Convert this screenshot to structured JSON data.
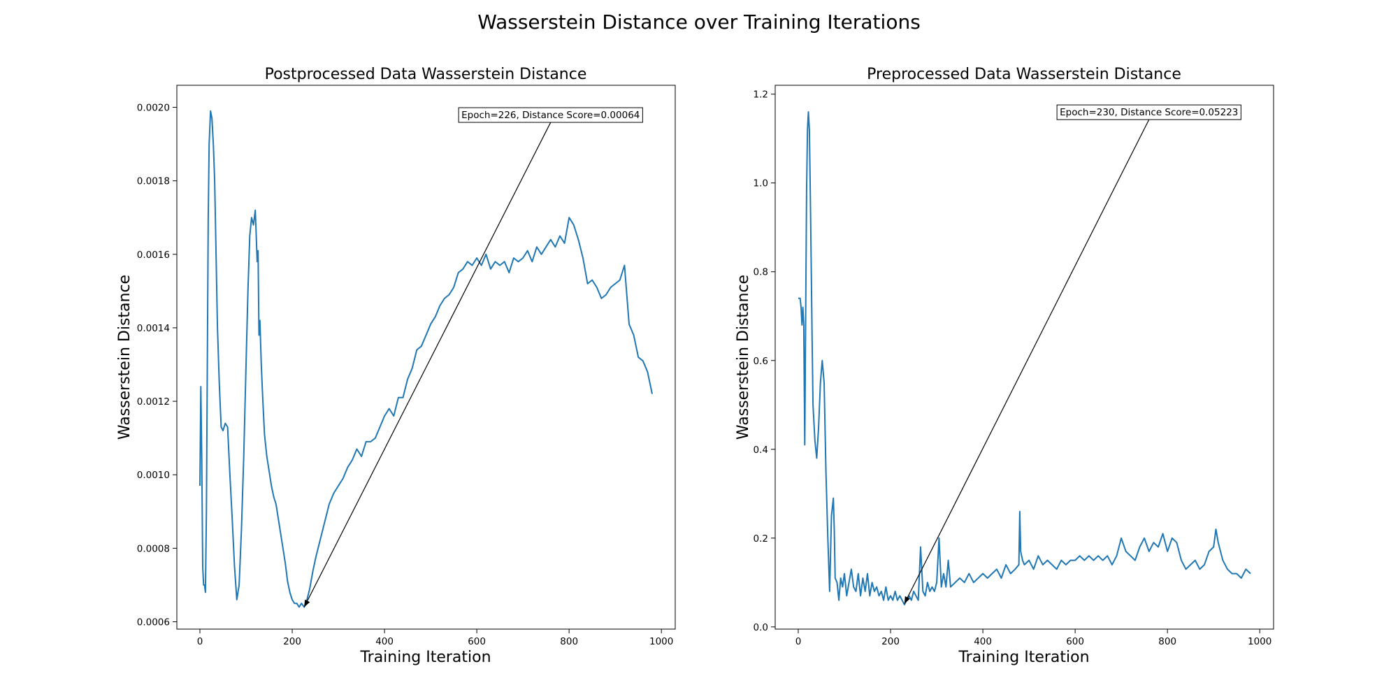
{
  "figure": {
    "suptitle": "Wasserstein Distance over Training Iterations"
  },
  "colors": {
    "line": "#1f77b4",
    "axis": "#000000",
    "background": "#ffffff"
  },
  "chart_data": [
    {
      "type": "line",
      "title": "Postprocessed Data Wasserstein Distance",
      "xlabel": "Training Iteration",
      "ylabel": "Wasserstein Distance",
      "xlim": [
        -50,
        1030
      ],
      "ylim": [
        0.00058,
        0.00206
      ],
      "xticks": [
        0,
        200,
        400,
        600,
        800,
        1000
      ],
      "yticks": [
        0.0006,
        0.0008,
        0.001,
        0.0012,
        0.0014,
        0.0016,
        0.0018,
        0.002
      ],
      "tick_decimals": 4,
      "grid": false,
      "series": [
        {
          "x": [
            0,
            2,
            4,
            6,
            8,
            10,
            12,
            14,
            16,
            18,
            20,
            23,
            26,
            29,
            32,
            35,
            38,
            42,
            46,
            50,
            55,
            60,
            65,
            70,
            75,
            80,
            85,
            90,
            95,
            100,
            104,
            108,
            112,
            116,
            120,
            122,
            124,
            126,
            128,
            130,
            133,
            136,
            140,
            145,
            150,
            155,
            160,
            165,
            170,
            175,
            180,
            185,
            190,
            195,
            200,
            205,
            210,
            215,
            220,
            226,
            232,
            238,
            245,
            252,
            260,
            270,
            280,
            290,
            300,
            310,
            320,
            330,
            340,
            350,
            360,
            370,
            380,
            390,
            400,
            410,
            420,
            430,
            440,
            450,
            460,
            470,
            480,
            490,
            500,
            510,
            520,
            530,
            540,
            550,
            560,
            570,
            580,
            590,
            600,
            610,
            620,
            630,
            640,
            650,
            660,
            670,
            680,
            690,
            700,
            710,
            720,
            730,
            740,
            750,
            760,
            770,
            780,
            790,
            800,
            810,
            820,
            830,
            840,
            850,
            860,
            870,
            880,
            890,
            900,
            910,
            920,
            930,
            940,
            950,
            960,
            970,
            980
          ],
          "y": [
            0.00097,
            0.00124,
            0.00105,
            0.00075,
            0.0007,
            0.0007,
            0.00068,
            0.0009,
            0.0013,
            0.0017,
            0.0019,
            0.00199,
            0.00197,
            0.0019,
            0.0018,
            0.0016,
            0.0014,
            0.00125,
            0.00113,
            0.00112,
            0.00114,
            0.00113,
            0.001,
            0.00088,
            0.00075,
            0.00066,
            0.0007,
            0.00085,
            0.00105,
            0.0013,
            0.0015,
            0.00165,
            0.0017,
            0.00168,
            0.00172,
            0.00165,
            0.00158,
            0.00161,
            0.00138,
            0.00142,
            0.0013,
            0.00121,
            0.00111,
            0.00105,
            0.00101,
            0.00097,
            0.00094,
            0.00092,
            0.00088,
            0.00084,
            0.0008,
            0.00076,
            0.00071,
            0.00068,
            0.00066,
            0.00065,
            0.00065,
            0.00064,
            0.00065,
            0.00064,
            0.00066,
            0.00069,
            0.00074,
            0.00078,
            0.00082,
            0.00087,
            0.00092,
            0.00095,
            0.00097,
            0.00099,
            0.00102,
            0.00104,
            0.00107,
            0.00105,
            0.00109,
            0.00109,
            0.0011,
            0.00113,
            0.00116,
            0.00118,
            0.00116,
            0.00121,
            0.00121,
            0.00126,
            0.00129,
            0.00134,
            0.00135,
            0.00138,
            0.00141,
            0.00143,
            0.00146,
            0.00148,
            0.00149,
            0.00151,
            0.00155,
            0.00156,
            0.00158,
            0.00157,
            0.00159,
            0.00157,
            0.0016,
            0.00156,
            0.00158,
            0.00157,
            0.00158,
            0.00155,
            0.00159,
            0.00158,
            0.00159,
            0.00161,
            0.00158,
            0.00162,
            0.0016,
            0.00162,
            0.00164,
            0.00162,
            0.00165,
            0.00163,
            0.0017,
            0.00168,
            0.00164,
            0.00159,
            0.00152,
            0.00153,
            0.00151,
            0.00148,
            0.00149,
            0.00151,
            0.00152,
            0.00153,
            0.00157,
            0.00141,
            0.00138,
            0.00132,
            0.00131,
            0.00128,
            0.00122
          ]
        }
      ],
      "annotation": {
        "text": "Epoch=226, Distance Score=0.00064",
        "point": [
          226,
          0.00064
        ],
        "text_anchor": [
          760,
          0.00198
        ]
      }
    },
    {
      "type": "line",
      "title": "Preprocessed Data Wasserstein Distance",
      "xlabel": "Training Iteration",
      "ylabel": "Wasserstein Distance",
      "xlim": [
        -50,
        1030
      ],
      "ylim": [
        -0.005,
        1.22
      ],
      "xticks": [
        0,
        200,
        400,
        600,
        800,
        1000
      ],
      "yticks": [
        0.0,
        0.2,
        0.4,
        0.6,
        0.8,
        1.0,
        1.2
      ],
      "tick_decimals": 1,
      "grid": false,
      "series": [
        {
          "x": [
            0,
            4,
            6,
            8,
            10,
            12,
            14,
            16,
            18,
            20,
            22,
            24,
            26,
            28,
            30,
            32,
            36,
            40,
            44,
            48,
            52,
            56,
            60,
            64,
            68,
            72,
            76,
            78,
            80,
            84,
            88,
            92,
            96,
            100,
            105,
            110,
            115,
            120,
            125,
            130,
            135,
            140,
            145,
            150,
            155,
            160,
            165,
            170,
            175,
            180,
            185,
            190,
            195,
            200,
            205,
            210,
            215,
            220,
            225,
            230,
            235,
            240,
            245,
            250,
            255,
            260,
            265,
            270,
            275,
            280,
            285,
            290,
            295,
            300,
            305,
            310,
            315,
            320,
            325,
            330,
            340,
            350,
            360,
            370,
            380,
            390,
            400,
            410,
            420,
            430,
            440,
            450,
            460,
            470,
            478,
            480,
            482,
            486,
            490,
            500,
            510,
            520,
            530,
            540,
            550,
            560,
            570,
            580,
            590,
            600,
            610,
            620,
            630,
            640,
            650,
            660,
            670,
            680,
            690,
            700,
            710,
            720,
            730,
            740,
            750,
            760,
            770,
            780,
            790,
            800,
            810,
            820,
            830,
            840,
            850,
            860,
            870,
            880,
            890,
            900,
            905,
            910,
            920,
            930,
            940,
            950,
            960,
            970,
            980
          ],
          "y": [
            0.74,
            0.74,
            0.72,
            0.68,
            0.72,
            0.68,
            0.41,
            0.7,
            0.98,
            1.12,
            1.16,
            1.12,
            0.98,
            0.82,
            0.65,
            0.5,
            0.42,
            0.38,
            0.45,
            0.55,
            0.6,
            0.55,
            0.35,
            0.2,
            0.08,
            0.25,
            0.29,
            0.22,
            0.11,
            0.1,
            0.06,
            0.11,
            0.09,
            0.12,
            0.07,
            0.1,
            0.13,
            0.09,
            0.08,
            0.12,
            0.07,
            0.11,
            0.08,
            0.12,
            0.07,
            0.1,
            0.08,
            0.09,
            0.07,
            0.08,
            0.06,
            0.09,
            0.06,
            0.07,
            0.06,
            0.08,
            0.06,
            0.07,
            0.06,
            0.05,
            0.06,
            0.07,
            0.06,
            0.08,
            0.07,
            0.06,
            0.18,
            0.08,
            0.07,
            0.1,
            0.08,
            0.09,
            0.08,
            0.1,
            0.2,
            0.09,
            0.12,
            0.09,
            0.15,
            0.09,
            0.1,
            0.11,
            0.1,
            0.12,
            0.1,
            0.11,
            0.12,
            0.11,
            0.12,
            0.13,
            0.11,
            0.14,
            0.12,
            0.13,
            0.14,
            0.26,
            0.17,
            0.15,
            0.14,
            0.15,
            0.13,
            0.16,
            0.14,
            0.15,
            0.14,
            0.13,
            0.15,
            0.14,
            0.15,
            0.15,
            0.16,
            0.15,
            0.16,
            0.15,
            0.16,
            0.15,
            0.16,
            0.14,
            0.16,
            0.2,
            0.17,
            0.16,
            0.15,
            0.18,
            0.2,
            0.17,
            0.19,
            0.18,
            0.21,
            0.17,
            0.2,
            0.19,
            0.15,
            0.13,
            0.14,
            0.15,
            0.13,
            0.14,
            0.17,
            0.18,
            0.22,
            0.19,
            0.15,
            0.13,
            0.12,
            0.12,
            0.11,
            0.13,
            0.12
          ]
        }
      ],
      "annotation": {
        "text": "Epoch=230, Distance Score=0.05223",
        "point": [
          230,
          0.05223
        ],
        "text_anchor": [
          760,
          1.16
        ]
      }
    }
  ]
}
